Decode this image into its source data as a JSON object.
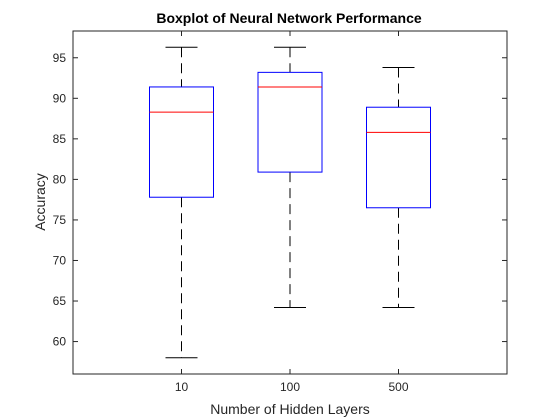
{
  "chart_data": {
    "type": "boxplot",
    "title": "Boxplot of Neural Network Performance",
    "xlabel": "Number of Hidden Layers",
    "ylabel": "Accuracy",
    "categories": [
      "10",
      "100",
      "500"
    ],
    "boxes": [
      {
        "category": "10",
        "min": 58.0,
        "q1": 77.8,
        "median": 88.3,
        "q3": 91.4,
        "max": 96.3
      },
      {
        "category": "100",
        "min": 64.2,
        "q1": 80.9,
        "median": 91.4,
        "q3": 93.2,
        "max": 96.3
      },
      {
        "category": "500",
        "min": 64.2,
        "q1": 76.5,
        "median": 85.8,
        "q3": 88.9,
        "max": 93.8
      }
    ],
    "ylim": [
      56,
      98.3
    ],
    "yticks": [
      60,
      65,
      70,
      75,
      80,
      85,
      90,
      95
    ],
    "grid": false,
    "colors": {
      "box": "#0000ff",
      "median": "#ff0000",
      "whisker": "#000000",
      "axis": "#262626"
    }
  }
}
